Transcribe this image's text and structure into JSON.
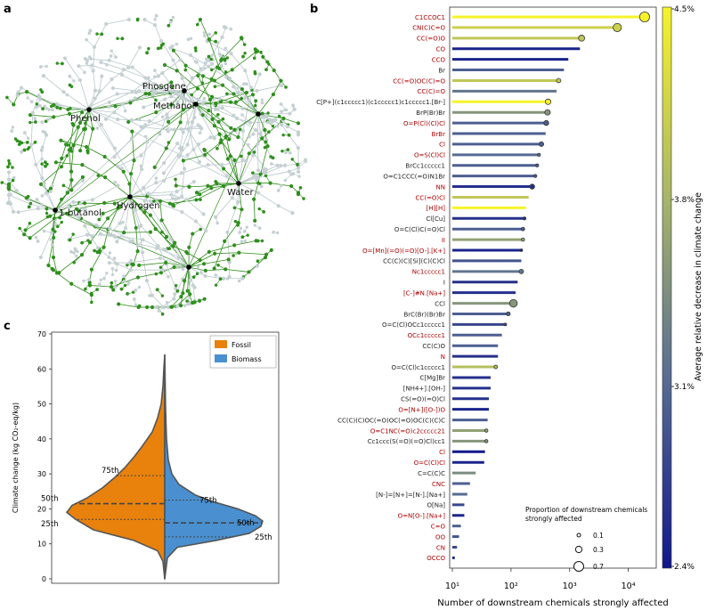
{
  "panel_labels": {
    "a": "a",
    "b": "b",
    "c": "c"
  },
  "network": {
    "labels": [
      "Phosgene",
      "Methanol",
      "Phenol",
      "Water",
      "Hydrogen",
      "1-butanol"
    ],
    "colors": {
      "edge_green": "#2e8b1a",
      "edge_gray": "#b8c6ca",
      "node_green": "#2f8f1e",
      "node_gray": "#c5d0d3",
      "hub": "#000000"
    }
  },
  "chart_data": [
    {
      "type": "bar",
      "orientation": "horizontal",
      "scale": "log",
      "categories": [
        "C1CCOC1",
        "CN(C)C=O",
        "CC(=O)O",
        "CO",
        "CCO",
        "Br",
        "CC(=O)OC(C)=O",
        "CC(C)=O",
        "C[P+](c1ccccc1)(c1ccccc1)c1ccccc1.[Br-]",
        "BrP(Br)Br",
        "O=P(Cl)(Cl)Cl",
        "BrBr",
        "Cl",
        "O=S(Cl)Cl",
        "BrCc1ccccc1",
        "O=C1CCC(=O)N1Br",
        "NN",
        "CC(=O)Cl",
        "[H][H]",
        "Cl[Cu]",
        "O=C(Cl)C(=O)Cl",
        "II",
        "O=[Mn](=O)(=O)[O-].[K+]",
        "CC(C)(C)[Si](C)(C)Cl",
        "Nc1ccccc1",
        "I",
        "[C-]#N.[Na+]",
        "CCl",
        "BrC(Br)(Br)Br",
        "O=C(Cl)OCc1ccccc1",
        "OCc1ccccc1",
        "CC(C)O",
        "N",
        "O=C(Cl)c1ccccc1",
        "C[Mg]Br",
        "[NH4+].[OH-]",
        "CS(=O)(=O)Cl",
        "O=[N+]([O-])O",
        "CC(C)(C)OC(=O)OC(=O)OC(C)(C)C",
        "O=C1NC(=O)c2ccccc21",
        "Cc1ccc(S(=O)(=O)Cl)cc1",
        "Cl",
        "O=C(Cl)Cl",
        "C=C(C)C",
        "CNC",
        "[N-]=[N+]=[N-].[Na+]",
        "O[Na]",
        "O=N[O-].[Na+]",
        "C=O",
        "OO",
        "CN",
        "OCCO"
      ],
      "values": [
        19000,
        6500,
        1600,
        1500,
        950,
        800,
        650,
        600,
        430,
        420,
        400,
        390,
        330,
        300,
        280,
        260,
        230,
        200,
        180,
        170,
        160,
        160,
        150,
        150,
        150,
        130,
        120,
        110,
        90,
        80,
        70,
        60,
        60,
        55,
        45,
        45,
        42,
        42,
        40,
        38,
        38,
        36,
        35,
        25,
        20,
        18,
        16,
        16,
        14,
        13,
        12,
        11
      ],
      "climate_change_pct": [
        4.5,
        4.1,
        4.0,
        2.5,
        2.5,
        3.0,
        4.0,
        3.2,
        4.5,
        3.5,
        3.0,
        3.0,
        3.0,
        3.1,
        3.0,
        3.0,
        2.6,
        4.0,
        4.5,
        2.6,
        3.0,
        3.6,
        2.5,
        2.9,
        3.2,
        2.6,
        2.6,
        3.5,
        3.0,
        2.8,
        3.0,
        3.0,
        2.6,
        3.9,
        2.6,
        2.6,
        2.6,
        2.5,
        3.0,
        3.6,
        3.5,
        2.4,
        2.5,
        3.4,
        3.0,
        3.1,
        2.8,
        2.5,
        3.0,
        2.9,
        2.8,
        2.5
      ],
      "proportion_affected": [
        0.7,
        0.55,
        0.35,
        0,
        0,
        0,
        0.2,
        0,
        0.3,
        0.3,
        0.25,
        0,
        0.22,
        0.08,
        0.08,
        0.08,
        0.25,
        0,
        0,
        0.08,
        0.12,
        0.1,
        0.05,
        0,
        0.2,
        0,
        0,
        0.5,
        0.15,
        0.05,
        0,
        0,
        0,
        0.12,
        0,
        0,
        0,
        0,
        0,
        0.1,
        0.1,
        0,
        0,
        0,
        0,
        0,
        0,
        0,
        0,
        0,
        0,
        0
      ],
      "highlighted": [
        true,
        true,
        true,
        true,
        true,
        false,
        true,
        true,
        false,
        false,
        true,
        true,
        true,
        true,
        false,
        false,
        true,
        true,
        true,
        false,
        false,
        true,
        true,
        false,
        true,
        false,
        true,
        false,
        false,
        false,
        true,
        false,
        true,
        false,
        false,
        false,
        false,
        true,
        false,
        true,
        false,
        true,
        true,
        false,
        true,
        false,
        false,
        true,
        true,
        true,
        true,
        true
      ],
      "xlabel": "Number of downstream chemicals strongly affected",
      "xlim": [
        10,
        30000
      ],
      "xticks": [
        "10¹",
        "10²",
        "10³",
        "10⁴"
      ],
      "colorbar": {
        "label": "Average relative decrease in climate change",
        "ticks": [
          "4.5%",
          "3.8%",
          "3.1%",
          "2.4%"
        ],
        "range": [
          2.4,
          4.5
        ]
      },
      "size_legend": {
        "title_line1": "Proportion of downstream chemicals",
        "title_line2": "strongly affected",
        "entries": [
          "0.1",
          "0.3",
          "0.7"
        ]
      },
      "colors": {
        "label_red": "#a80000",
        "label_black": "#222222"
      }
    },
    {
      "type": "violin",
      "ylabel": "Climate change (kg CO₂-eq/kg)",
      "ylim": [
        0,
        70
      ],
      "yticks": [
        0,
        10,
        20,
        30,
        40,
        50,
        60,
        70
      ],
      "series": [
        {
          "name": "Fossil",
          "color": "#e8820c",
          "q25": 17,
          "q50": 21.5,
          "q75": 29.5
        },
        {
          "name": "Biomass",
          "color": "#4a8fcf",
          "q25": 12,
          "q50": 16,
          "q75": 22.5
        }
      ],
      "quartile_labels": {
        "q75": "75th",
        "q50": "50th",
        "q25": "25th"
      }
    }
  ]
}
